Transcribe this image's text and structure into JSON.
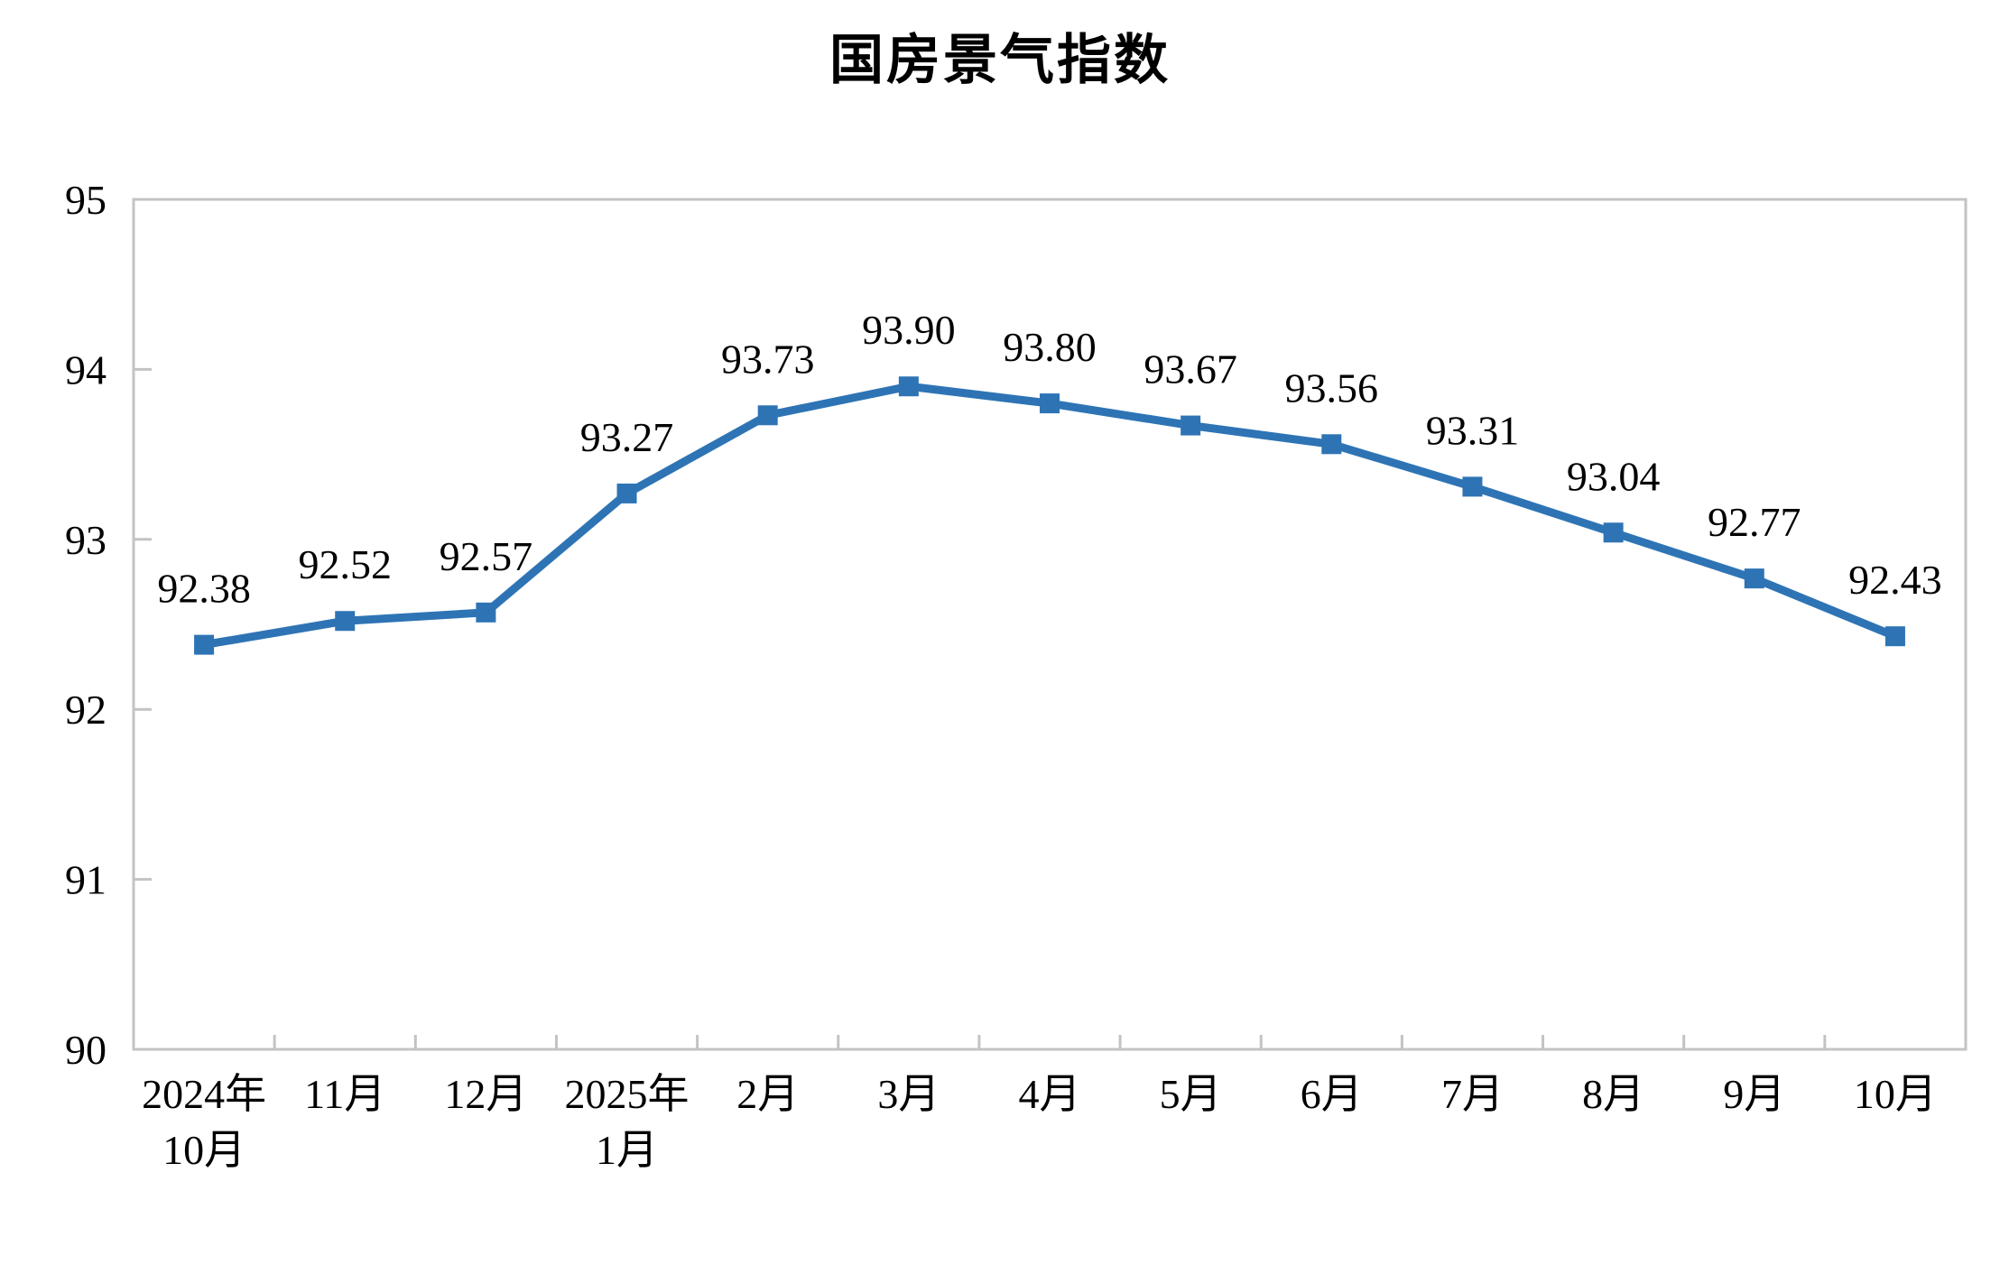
{
  "page": {
    "background": "#ffffff"
  },
  "chart_data": {
    "type": "line",
    "title": "国房景气指数",
    "categories": [
      [
        "2024年",
        "10月"
      ],
      [
        "11月"
      ],
      [
        "12月"
      ],
      [
        "2025年",
        "1月"
      ],
      [
        "2月"
      ],
      [
        "3月"
      ],
      [
        "4月"
      ],
      [
        "5月"
      ],
      [
        "6月"
      ],
      [
        "7月"
      ],
      [
        "8月"
      ],
      [
        "9月"
      ],
      [
        "10月"
      ]
    ],
    "values": [
      92.38,
      92.52,
      92.57,
      93.27,
      93.73,
      93.9,
      93.8,
      93.67,
      93.56,
      93.31,
      93.04,
      92.77,
      92.43
    ],
    "data_labels": [
      "92.38",
      "92.52",
      "92.57",
      "93.27",
      "93.73",
      "93.90",
      "93.80",
      "93.67",
      "93.56",
      "93.31",
      "93.04",
      "92.77",
      "92.43"
    ],
    "xlabel": "",
    "ylabel": "",
    "ylim": [
      90,
      95
    ],
    "yticks": [
      90,
      91,
      92,
      93,
      94,
      95
    ],
    "grid": false,
    "legend": "none",
    "marker": "square",
    "colors": {
      "line": "#2E74B5",
      "marker": "#2E74B5",
      "axis_box": "#C3C3C6",
      "text": "#000000"
    }
  }
}
